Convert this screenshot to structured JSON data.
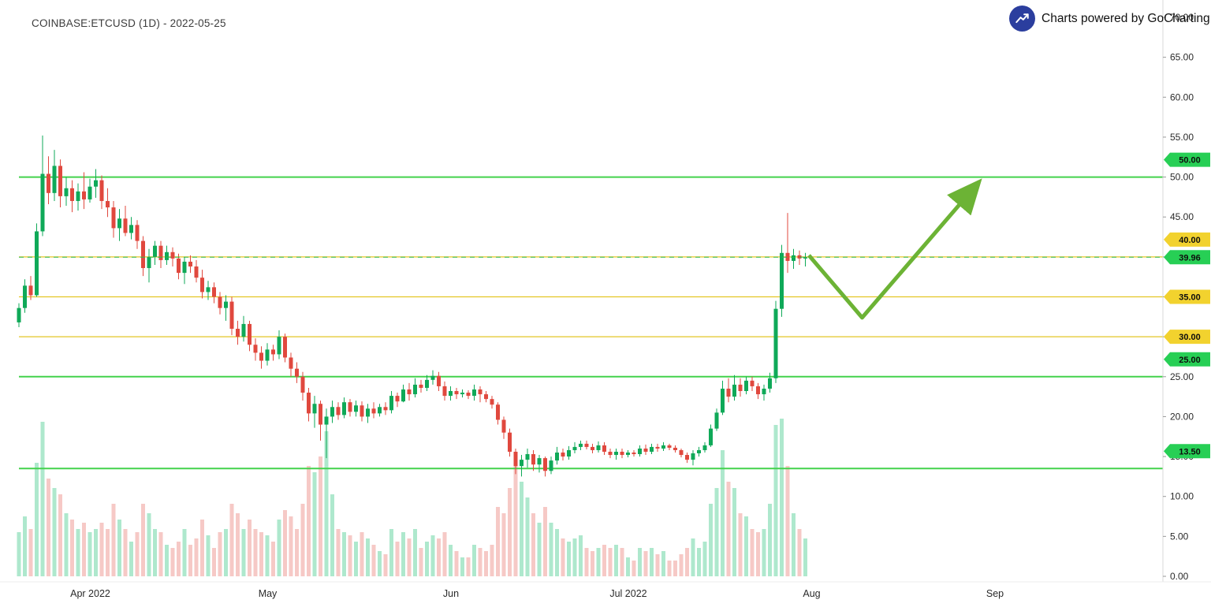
{
  "header": {
    "symbol_title": "COINBASE:ETCUSD (1D) - 2022-05-25",
    "attribution": "Charts powered by GoCharting"
  },
  "colors": {
    "candle_up": "#0fa958",
    "candle_down": "#e0483e",
    "volume_up": "#aee8cd",
    "volume_down": "#f6c9c6",
    "level_green": "#43d24c",
    "level_yellow": "#e3c625",
    "current_price_line": "#2eb84d",
    "tag_green": "#27cf55",
    "tag_yellow": "#f2d22e",
    "arrow": "#6cb335",
    "axis_text": "#2a2a2a",
    "logo_blue": "#2b3e9e"
  },
  "chart_data": {
    "type": "candlestick",
    "symbol": "COINBASE:ETCUSD",
    "interval": "1D",
    "title": "COINBASE:ETCUSD (1D) - 2022-05-25",
    "start_date": "2022-03-21",
    "ylim": [
      0,
      70
    ],
    "grid": "off",
    "y_ticks": [
      "70.00",
      "65.00",
      "60.00",
      "55.00",
      "50.00",
      "45.00",
      "40.00",
      "35.00",
      "30.00",
      "25.00",
      "20.00",
      "15.00",
      "10.00",
      "5.00",
      "0.00"
    ],
    "x_ticks": [
      {
        "label": "Apr 2022",
        "day_index": 11
      },
      {
        "label": "May",
        "day_index": 41
      },
      {
        "label": "Jun",
        "day_index": 72
      },
      {
        "label": "Jul 2022",
        "day_index": 102
      },
      {
        "label": "Aug",
        "day_index": 133
      },
      {
        "label": "Sep",
        "day_index": 164
      }
    ],
    "levels": [
      {
        "price": 50.0,
        "label": "50.00",
        "color": "green",
        "width": 2,
        "tag_position": "above"
      },
      {
        "price": 40.0,
        "label": "40.00",
        "color": "yellow",
        "width": 1.2,
        "tag_position": "above"
      },
      {
        "price": 35.0,
        "label": "35.00",
        "color": "yellow",
        "width": 1.2,
        "tag_position": "on"
      },
      {
        "price": 30.0,
        "label": "30.00",
        "color": "yellow",
        "width": 1.2,
        "tag_position": "on"
      },
      {
        "price": 25.0,
        "label": "25.00",
        "color": "green",
        "width": 2,
        "tag_position": "above"
      },
      {
        "price": 13.5,
        "label": "13.50",
        "color": "green",
        "width": 2,
        "tag_position": "above"
      }
    ],
    "last_price": 39.96,
    "last_price_label": "39.96",
    "arrow": {
      "points": [
        {
          "day": 133.6,
          "price": 40.2
        },
        {
          "day": 142.6,
          "price": 32.4
        },
        {
          "day": 161.8,
          "price": 48.9
        }
      ]
    },
    "ohlcv": [
      [
        31.8,
        34.2,
        31.2,
        33.6,
        28
      ],
      [
        33.6,
        37.2,
        33.0,
        36.4,
        38
      ],
      [
        36.4,
        37.6,
        34.6,
        35.2,
        30
      ],
      [
        35.2,
        44.2,
        35.0,
        43.2,
        72
      ],
      [
        43.2,
        55.2,
        42.6,
        50.4,
        98
      ],
      [
        50.4,
        52.6,
        46.6,
        48.0,
        62
      ],
      [
        48.0,
        53.4,
        47.0,
        51.4,
        56
      ],
      [
        51.4,
        52.2,
        46.2,
        47.6,
        52
      ],
      [
        47.6,
        50.0,
        46.4,
        48.6,
        40
      ],
      [
        48.6,
        49.6,
        45.6,
        47.0,
        36
      ],
      [
        47.0,
        49.2,
        45.8,
        48.2,
        30
      ],
      [
        48.2,
        50.6,
        46.0,
        47.2,
        34
      ],
      [
        47.2,
        49.8,
        46.8,
        48.8,
        28
      ],
      [
        48.8,
        51.0,
        47.4,
        49.6,
        30
      ],
      [
        49.6,
        50.2,
        46.0,
        47.0,
        34
      ],
      [
        47.0,
        48.6,
        45.0,
        46.2,
        30
      ],
      [
        46.2,
        47.0,
        42.4,
        43.6,
        46
      ],
      [
        43.6,
        46.0,
        42.0,
        44.8,
        36
      ],
      [
        44.8,
        46.4,
        42.6,
        43.0,
        30
      ],
      [
        43.0,
        45.0,
        42.2,
        44.0,
        22
      ],
      [
        44.0,
        44.6,
        41.0,
        42.0,
        28
      ],
      [
        42.0,
        42.6,
        37.6,
        38.6,
        46
      ],
      [
        38.6,
        41.0,
        36.8,
        40.0,
        40
      ],
      [
        40.0,
        42.0,
        39.0,
        41.4,
        30
      ],
      [
        41.4,
        42.0,
        38.6,
        39.6,
        28
      ],
      [
        39.6,
        41.4,
        39.0,
        40.6,
        20
      ],
      [
        40.6,
        41.2,
        38.8,
        39.8,
        18
      ],
      [
        39.8,
        40.4,
        37.2,
        38.0,
        22
      ],
      [
        38.0,
        40.0,
        36.6,
        39.4,
        30
      ],
      [
        39.4,
        40.2,
        38.0,
        38.8,
        20
      ],
      [
        38.8,
        39.6,
        36.8,
        37.4,
        24
      ],
      [
        37.4,
        38.4,
        34.8,
        35.6,
        36
      ],
      [
        35.6,
        37.0,
        34.6,
        36.2,
        26
      ],
      [
        36.2,
        36.8,
        34.2,
        35.0,
        18
      ],
      [
        35.0,
        35.6,
        32.8,
        33.6,
        28
      ],
      [
        33.6,
        35.2,
        32.0,
        34.4,
        30
      ],
      [
        34.4,
        35.0,
        30.2,
        31.0,
        46
      ],
      [
        31.0,
        32.0,
        29.0,
        30.0,
        40
      ],
      [
        30.0,
        32.6,
        29.4,
        31.6,
        30
      ],
      [
        31.6,
        32.0,
        28.2,
        29.0,
        36
      ],
      [
        29.0,
        29.8,
        27.0,
        28.0,
        30
      ],
      [
        28.0,
        28.8,
        26.0,
        27.0,
        28
      ],
      [
        27.0,
        29.2,
        26.4,
        28.4,
        26
      ],
      [
        28.4,
        29.0,
        27.0,
        27.8,
        22
      ],
      [
        27.8,
        30.8,
        27.2,
        30.0,
        36
      ],
      [
        30.0,
        30.4,
        26.8,
        27.4,
        42
      ],
      [
        27.4,
        28.0,
        25.0,
        26.0,
        38
      ],
      [
        26.0,
        26.8,
        24.2,
        25.0,
        30
      ],
      [
        25.0,
        25.6,
        22.0,
        23.0,
        46
      ],
      [
        23.0,
        23.6,
        19.4,
        20.4,
        70
      ],
      [
        20.4,
        22.6,
        18.6,
        21.6,
        66
      ],
      [
        21.6,
        22.0,
        17.0,
        19.0,
        76
      ],
      [
        19.0,
        21.0,
        14.8,
        20.0,
        92
      ],
      [
        20.0,
        22.0,
        19.2,
        21.2,
        52
      ],
      [
        21.2,
        21.8,
        19.6,
        20.2,
        30
      ],
      [
        20.2,
        22.4,
        19.8,
        21.8,
        28
      ],
      [
        21.8,
        22.2,
        20.0,
        20.6,
        26
      ],
      [
        20.6,
        22.0,
        20.0,
        21.4,
        22
      ],
      [
        21.4,
        21.9,
        19.4,
        20.0,
        28
      ],
      [
        20.0,
        21.6,
        19.2,
        21.0,
        24
      ],
      [
        21.0,
        21.8,
        19.8,
        20.4,
        20
      ],
      [
        20.4,
        21.6,
        20.0,
        21.2,
        16
      ],
      [
        21.2,
        21.8,
        20.2,
        20.8,
        14
      ],
      [
        20.8,
        23.2,
        20.4,
        22.6,
        30
      ],
      [
        22.6,
        23.0,
        21.2,
        21.9,
        22
      ],
      [
        21.9,
        24.0,
        21.8,
        23.4,
        28
      ],
      [
        23.4,
        24.2,
        22.0,
        22.8,
        24
      ],
      [
        22.8,
        24.8,
        22.4,
        24.0,
        30
      ],
      [
        24.0,
        24.6,
        23.0,
        23.6,
        18
      ],
      [
        23.6,
        25.2,
        23.2,
        24.6,
        22
      ],
      [
        24.6,
        25.8,
        24.0,
        25.1,
        26
      ],
      [
        25.1,
        25.6,
        23.2,
        23.8,
        24
      ],
      [
        23.8,
        24.4,
        22.0,
        22.6,
        28
      ],
      [
        22.6,
        23.8,
        22.0,
        23.2,
        20
      ],
      [
        23.2,
        23.6,
        22.2,
        22.8,
        16
      ],
      [
        22.8,
        23.4,
        22.4,
        23.0,
        12
      ],
      [
        23.0,
        23.3,
        22.2,
        22.6,
        12
      ],
      [
        22.6,
        24.0,
        22.0,
        23.4,
        20
      ],
      [
        23.4,
        23.8,
        21.8,
        22.8,
        18
      ],
      [
        22.8,
        23.2,
        21.8,
        22.2,
        16
      ],
      [
        22.2,
        22.6,
        21.0,
        21.5,
        20
      ],
      [
        21.5,
        21.8,
        19.0,
        19.6,
        44
      ],
      [
        19.6,
        20.0,
        17.2,
        18.0,
        40
      ],
      [
        18.0,
        18.5,
        15.0,
        15.6,
        56
      ],
      [
        15.6,
        16.0,
        12.8,
        13.8,
        76
      ],
      [
        13.8,
        15.2,
        12.5,
        14.6,
        60
      ],
      [
        14.6,
        16.0,
        13.6,
        15.3,
        50
      ],
      [
        15.3,
        15.8,
        13.2,
        14.0,
        40
      ],
      [
        14.0,
        15.2,
        13.0,
        14.8,
        34
      ],
      [
        14.8,
        15.0,
        12.5,
        13.2,
        44
      ],
      [
        13.2,
        15.0,
        12.8,
        14.5,
        34
      ],
      [
        14.5,
        16.2,
        14.0,
        15.5,
        30
      ],
      [
        15.5,
        16.0,
        14.5,
        15.0,
        24
      ],
      [
        15.0,
        16.3,
        14.6,
        15.8,
        22
      ],
      [
        15.8,
        16.8,
        15.4,
        16.2,
        24
      ],
      [
        16.2,
        17.0,
        15.8,
        16.6,
        26
      ],
      [
        16.6,
        17.0,
        15.9,
        16.2,
        18
      ],
      [
        16.2,
        16.6,
        15.4,
        15.8,
        16
      ],
      [
        15.8,
        16.9,
        15.5,
        16.4,
        18
      ],
      [
        16.4,
        16.8,
        15.2,
        15.6,
        20
      ],
      [
        15.6,
        16.0,
        14.8,
        15.2,
        18
      ],
      [
        15.2,
        16.0,
        14.6,
        15.6,
        20
      ],
      [
        15.6,
        16.0,
        14.8,
        15.2,
        18
      ],
      [
        15.2,
        15.8,
        14.9,
        15.5,
        12
      ],
      [
        15.5,
        15.8,
        15.0,
        15.3,
        10
      ],
      [
        15.3,
        16.4,
        15.0,
        16.0,
        18
      ],
      [
        16.0,
        16.5,
        15.2,
        15.6,
        16
      ],
      [
        15.6,
        16.6,
        15.3,
        16.2,
        18
      ],
      [
        16.2,
        16.6,
        15.6,
        16.0,
        14
      ],
      [
        16.0,
        16.8,
        15.7,
        16.4,
        16
      ],
      [
        16.4,
        16.6,
        15.8,
        16.1,
        10
      ],
      [
        16.1,
        16.4,
        15.5,
        15.8,
        10
      ],
      [
        15.8,
        16.0,
        14.9,
        15.2,
        14
      ],
      [
        15.2,
        15.5,
        14.2,
        14.6,
        18
      ],
      [
        14.6,
        15.8,
        13.9,
        15.4,
        24
      ],
      [
        15.4,
        16.2,
        15.0,
        15.8,
        18
      ],
      [
        15.8,
        16.8,
        15.5,
        16.4,
        22
      ],
      [
        16.4,
        19.0,
        16.2,
        18.5,
        46
      ],
      [
        18.5,
        21.0,
        18.2,
        20.5,
        56
      ],
      [
        20.5,
        24.5,
        20.2,
        23.5,
        80
      ],
      [
        23.5,
        24.8,
        21.8,
        22.5,
        60
      ],
      [
        22.5,
        25.2,
        22.0,
        24.0,
        56
      ],
      [
        24.0,
        24.8,
        22.5,
        23.2,
        40
      ],
      [
        23.2,
        25.0,
        22.8,
        24.5,
        38
      ],
      [
        24.5,
        25.0,
        23.2,
        23.8,
        30
      ],
      [
        23.8,
        24.2,
        22.2,
        22.8,
        28
      ],
      [
        22.8,
        24.0,
        22.0,
        23.5,
        30
      ],
      [
        23.5,
        25.5,
        23.0,
        24.8,
        46
      ],
      [
        24.8,
        34.5,
        24.2,
        33.5,
        96
      ],
      [
        33.5,
        41.5,
        32.5,
        40.5,
        100
      ],
      [
        40.5,
        45.5,
        38.0,
        39.5,
        70
      ],
      [
        39.5,
        41.0,
        38.5,
        40.2,
        40
      ],
      [
        40.2,
        40.8,
        39.0,
        39.8,
        30
      ],
      [
        39.8,
        40.5,
        38.8,
        39.96,
        24
      ]
    ]
  }
}
